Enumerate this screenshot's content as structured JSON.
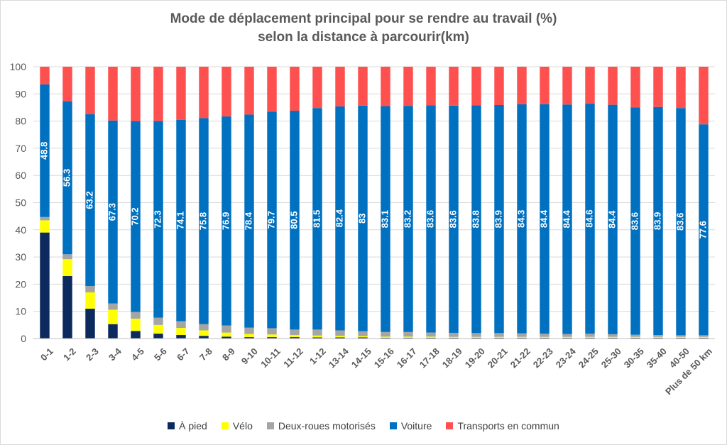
{
  "chart_data": {
    "type": "bar",
    "stacked": true,
    "title": "Mode de déplacement principal pour se rendre au travail (%)",
    "subtitle": "selon la distance à parcourir(km)",
    "ylim": [
      0,
      100
    ],
    "yticks": [
      0,
      10,
      20,
      30,
      40,
      50,
      60,
      70,
      80,
      90,
      100
    ],
    "grid": true,
    "legend_position": "bottom",
    "categories": [
      "0-1",
      "1-2",
      "2-3",
      "3-4",
      "4-5",
      "5-6",
      "6-7",
      "7-8",
      "8-9",
      "9-10",
      "10-11",
      "11-12",
      "1-12",
      "13-14",
      "14-15",
      "15-16",
      "16-17",
      "17-18",
      "18-19",
      "19-20",
      "20-21",
      "21-22",
      "22-23",
      "23-24",
      "24-25",
      "25-30",
      "30-35",
      "35-40",
      "40-50",
      "Plus de 50 km"
    ],
    "series": [
      {
        "name": "À pied",
        "color": "#0d2a5e",
        "values": [
          39.0,
          23.0,
          11.0,
          5.3,
          2.8,
          1.8,
          1.3,
          1.0,
          0.7,
          0.5,
          0.5,
          0.5,
          0.4,
          0.4,
          0.4,
          0.3,
          0.3,
          0.3,
          0.3,
          0.3,
          0.3,
          0.3,
          0.3,
          0.3,
          0.3,
          0.3,
          0.3,
          0.3,
          0.3,
          0.3
        ]
      },
      {
        "name": "Vélo",
        "color": "#ffff00",
        "values": [
          4.5,
          6.2,
          6.0,
          5.3,
          4.5,
          3.2,
          2.6,
          2.0,
          1.5,
          1.2,
          1.0,
          0.8,
          0.7,
          0.6,
          0.5,
          0.4,
          0.4,
          0.4,
          0.3,
          0.3,
          0.3,
          0.3,
          0.3,
          0.3,
          0.3,
          0.3,
          0.3,
          0.3,
          0.3,
          0.3
        ]
      },
      {
        "name": "Deux-roues motorisés",
        "color": "#a5a5a5",
        "values": [
          1.2,
          1.8,
          2.3,
          2.3,
          2.5,
          2.7,
          2.5,
          2.3,
          2.6,
          2.3,
          2.3,
          2.0,
          2.2,
          2.0,
          1.8,
          1.7,
          1.7,
          1.5,
          1.5,
          1.4,
          1.4,
          1.3,
          1.2,
          1.1,
          1.2,
          1.0,
          0.8,
          0.7,
          0.6,
          0.6
        ]
      },
      {
        "name": "Voiture",
        "color": "#0070c0",
        "values": [
          48.8,
          56.3,
          63.2,
          67.3,
          70.2,
          72.3,
          74.1,
          75.8,
          76.9,
          78.4,
          79.7,
          80.5,
          81.5,
          82.4,
          83,
          83.1,
          83.2,
          83.6,
          83.6,
          83.8,
          83.9,
          84.3,
          84.4,
          84.4,
          84.6,
          84.4,
          83.6,
          83.9,
          83.6,
          77.6
        ],
        "labels": [
          "48.8",
          "56.3",
          "63.2",
          "67.3",
          "70.2",
          "72.3",
          "74.1",
          "75.8",
          "76.9",
          "78.4",
          "79.7",
          "80.5",
          "81.5",
          "82.4",
          "83",
          "83.1",
          "83.2",
          "83.6",
          "83.6",
          "83.8",
          "83.9",
          "84.3",
          "84.4",
          "84.4",
          "84.6",
          "84.4",
          "83.6",
          "83.9",
          "83.6",
          "77.6"
        ]
      },
      {
        "name": "Transports en commun",
        "color": "#ff5050",
        "values": [
          6.5,
          12.7,
          17.5,
          19.8,
          20.0,
          20.0,
          19.5,
          18.9,
          18.3,
          17.6,
          16.5,
          16.2,
          15.2,
          14.6,
          14.3,
          14.5,
          14.4,
          14.2,
          14.3,
          14.2,
          14.1,
          13.8,
          13.8,
          13.9,
          13.6,
          14.0,
          15.0,
          14.8,
          15.2,
          21.2
        ]
      }
    ]
  }
}
